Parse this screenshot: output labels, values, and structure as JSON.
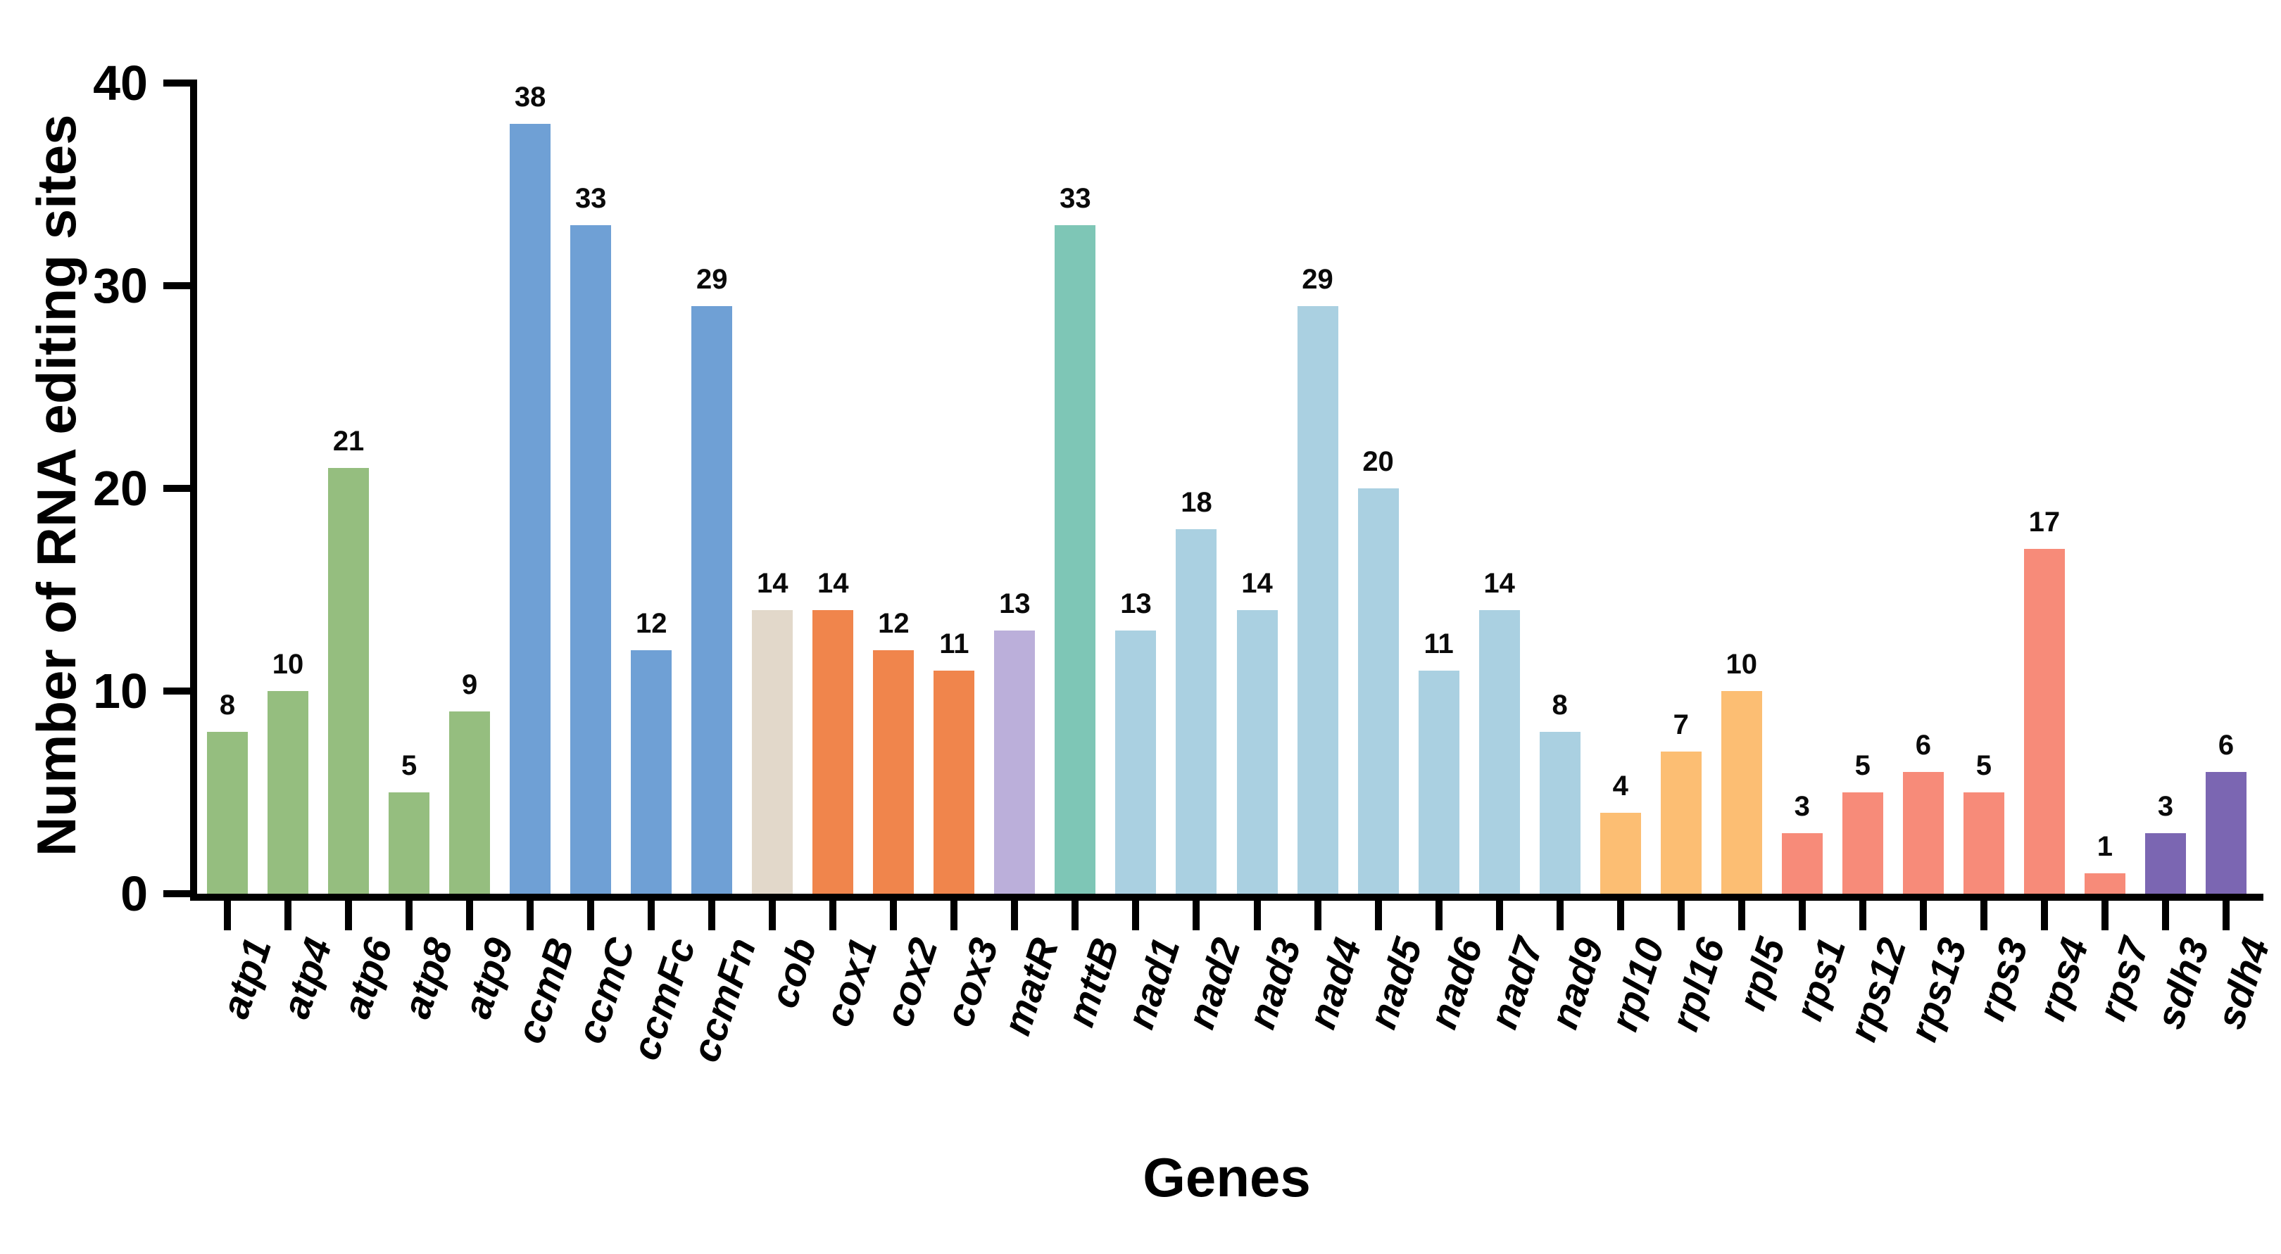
{
  "chart_data": {
    "type": "bar",
    "title": "",
    "xlabel": "Genes",
    "ylabel": "Number of RNA editing sites",
    "ylim": [
      0,
      40
    ],
    "yticks": [
      0,
      10,
      20,
      30,
      40
    ],
    "grid": false,
    "legend_position": "none",
    "value_labels_position": "above each bar",
    "categories": [
      "atp1",
      "atp4",
      "atp6",
      "atp8",
      "atp9",
      "ccmB",
      "ccmC",
      "ccmFc",
      "ccmFn",
      "cob",
      "cox1",
      "cox2",
      "cox3",
      "matR",
      "mttB",
      "nad1",
      "nad2",
      "nad3",
      "nad4",
      "nad5",
      "nad6",
      "nad7",
      "nad9",
      "rpl10",
      "rpl16",
      "rpl5",
      "rps1",
      "rps12",
      "rps13",
      "rps3",
      "rps4",
      "rps7",
      "sdh3",
      "sdh4"
    ],
    "values": [
      8,
      10,
      21,
      5,
      9,
      38,
      33,
      12,
      29,
      14,
      14,
      12,
      11,
      13,
      33,
      13,
      18,
      14,
      29,
      20,
      11,
      14,
      8,
      4,
      7,
      10,
      3,
      5,
      6,
      5,
      17,
      1,
      3,
      6
    ],
    "bar_colors": [
      "#95BE7F",
      "#95BE7F",
      "#95BE7F",
      "#95BE7F",
      "#95BE7F",
      "#6FA0D5",
      "#6FA0D5",
      "#6FA0D5",
      "#6FA0D5",
      "#E2D8CA",
      "#F0854C",
      "#F0854C",
      "#F0854C",
      "#BBAFDA",
      "#7EC6B6",
      "#AAD0E1",
      "#AAD0E1",
      "#AAD0E1",
      "#AAD0E1",
      "#AAD0E1",
      "#AAD0E1",
      "#AAD0E1",
      "#AAD0E1",
      "#FCBE73",
      "#FCBE73",
      "#FCBE73",
      "#F78B79",
      "#F78B79",
      "#F78B79",
      "#F78B79",
      "#F78B79",
      "#F78B79",
      "#7B66B2",
      "#7B66B2"
    ],
    "group_colors": {
      "atp": "#95BE7F",
      "ccm": "#6FA0D5",
      "cob": "#E2D8CA",
      "cox": "#F0854C",
      "matR": "#BBAFDA",
      "mttB": "#7EC6B6",
      "nad": "#AAD0E1",
      "rpl": "#FCBE73",
      "rps": "#F78B79",
      "sdh": "#7B66B2"
    },
    "axis_color": "#000000"
  }
}
